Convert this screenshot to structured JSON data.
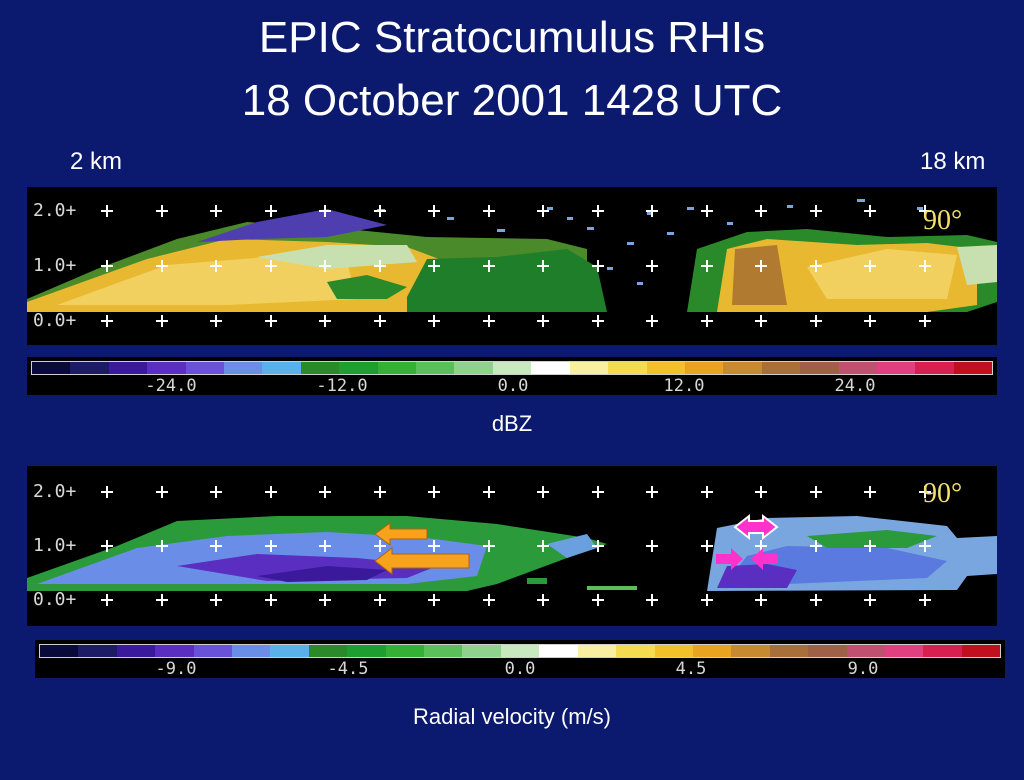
{
  "title_line1": "EPIC Stratocumulus RHIs",
  "title_line2": "18 October 2001 1428 UTC",
  "range_left": "2 km",
  "range_right": "18 km",
  "reflectivity": {
    "y_ticks": [
      "2.0+",
      "1.0+",
      "0.0+"
    ],
    "angle": "90°",
    "colorbar_labels": [
      "-24.0",
      "-12.0",
      "0.0",
      "12.0",
      "24.0"
    ],
    "unit": "dBZ"
  },
  "velocity": {
    "y_ticks": [
      "2.0+",
      "1.0+",
      "0.0+"
    ],
    "angle": "90°",
    "colorbar_labels": [
      "-9.0",
      "-4.5",
      "0.0",
      "4.5",
      "9.0"
    ],
    "unit": "Radial velocity (m/s)"
  },
  "colors": {
    "background": "#0b1a6e",
    "panel": "#000000",
    "arrow_orange": "#f7a21b",
    "arrow_magenta": "#ff33cc",
    "colorscale": [
      "#0a0a3a",
      "#1c1c66",
      "#3a1a9a",
      "#5a2ec0",
      "#6a52d8",
      "#6a8ee8",
      "#5ab0e8",
      "#2a8a2a",
      "#1e9e2e",
      "#34b034",
      "#5ac05a",
      "#8ed28e",
      "#c8e8c0",
      "#ffffff",
      "#f8f0a0",
      "#f4dc50",
      "#f2c02a",
      "#e8a420",
      "#c88a30",
      "#a87038",
      "#a06048",
      "#c05070",
      "#e04080",
      "#d82050",
      "#c01020"
    ]
  }
}
